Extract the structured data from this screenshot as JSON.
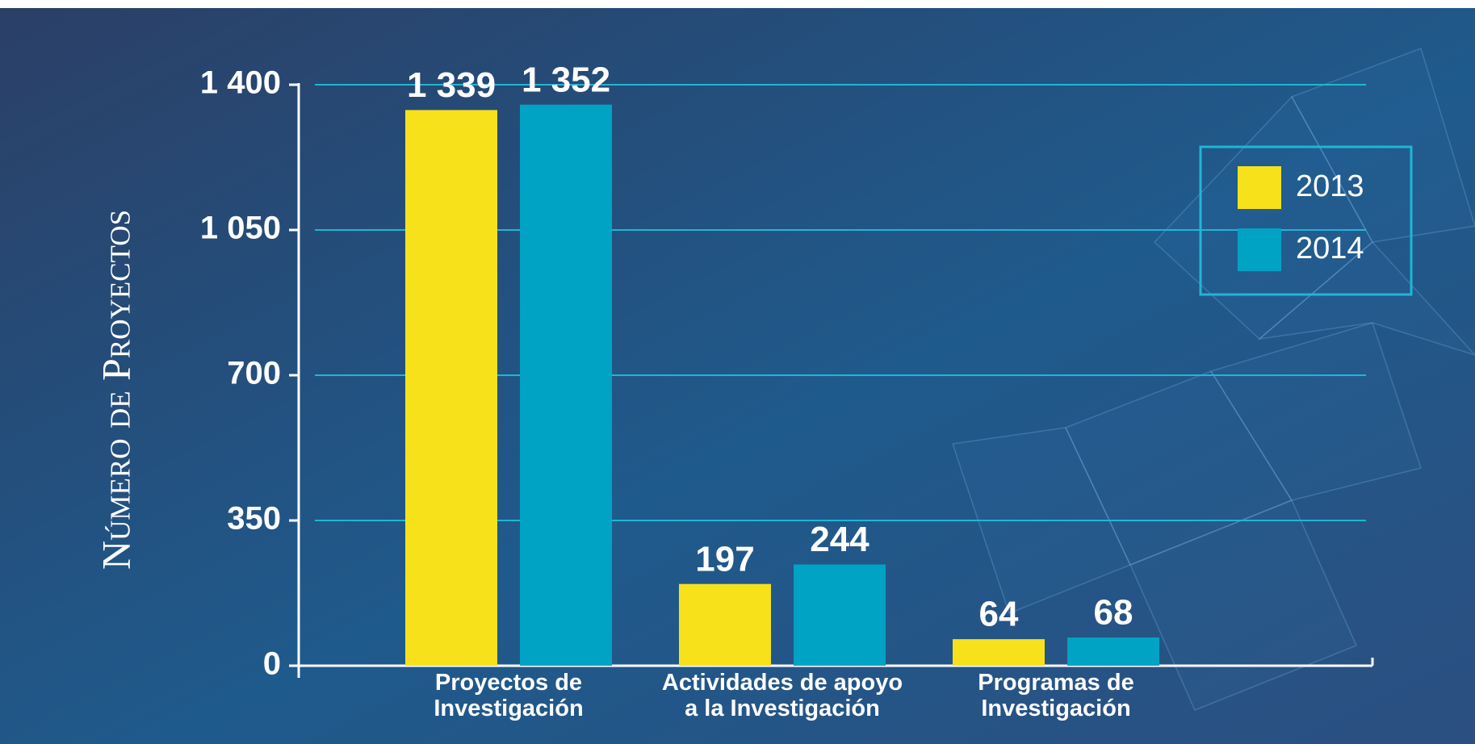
{
  "chart_data": {
    "type": "bar",
    "y_label": "Número de Proyectos",
    "categories": [
      "Proyectos de\nInvestigación",
      "Actividades de apoyo\na la Investigación",
      "Programas de\nInvestigación"
    ],
    "series": [
      {
        "name": "2013",
        "color": "#f7e11b",
        "values": [
          1339,
          197,
          64
        ],
        "value_labels": [
          "1 339",
          "197",
          "64"
        ]
      },
      {
        "name": "2014",
        "color": "#00a3c4",
        "values": [
          1352,
          244,
          68
        ],
        "value_labels": [
          "1 352",
          "244",
          "68"
        ]
      }
    ],
    "ylim": [
      0,
      1400
    ],
    "yticks": [
      0,
      350,
      700,
      {
        "value": 1050,
        "label": "1 050"
      },
      {
        "value": 1400,
        "label": "1 400"
      }
    ],
    "grid": true,
    "legend": "upper right"
  }
}
